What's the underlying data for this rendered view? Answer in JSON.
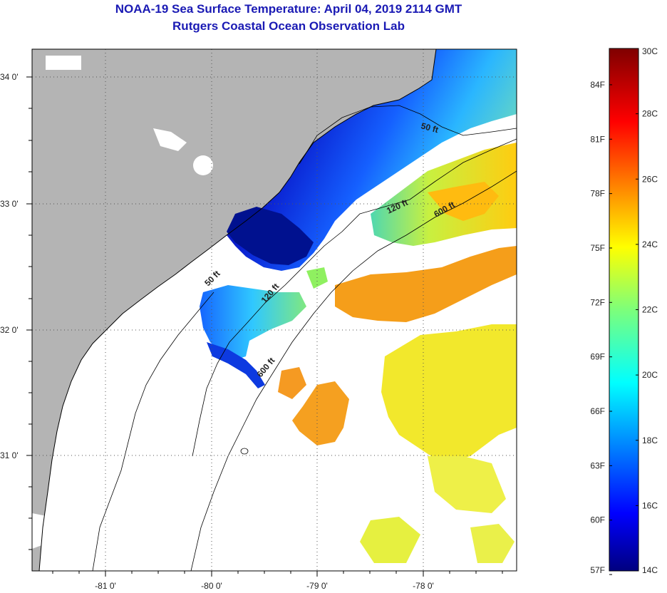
{
  "header": {
    "title": "NOAA-19 Sea Surface Temperature:  April 04, 2019 2114 GMT",
    "subtitle": "Rutgers Coastal Ocean Observation Lab"
  },
  "map": {
    "lat_ticks": [
      "34 0'",
      "33 0'",
      "32 0'",
      "31 0'"
    ],
    "lon_ticks": [
      "-81 0'",
      "-80 0'",
      "-79 0'",
      "-78 0'"
    ],
    "contours": [
      "50 ft",
      "120 ft",
      "600 ft",
      "50 ft",
      "120 ft",
      "600 ft"
    ],
    "colors": {
      "land": "#b4b4b4",
      "cloud": "#ffffff",
      "frame": "#000000"
    }
  },
  "colorbar": {
    "celsius": [
      "30C",
      "28C",
      "26C",
      "24C",
      "22C",
      "20C",
      "18C",
      "16C",
      "14C"
    ],
    "fahrenheit": [
      "84F",
      "81F",
      "78F",
      "75F",
      "72F",
      "69F",
      "66F",
      "63F",
      "60F",
      "57F"
    ],
    "range_c": [
      14,
      30
    ]
  }
}
